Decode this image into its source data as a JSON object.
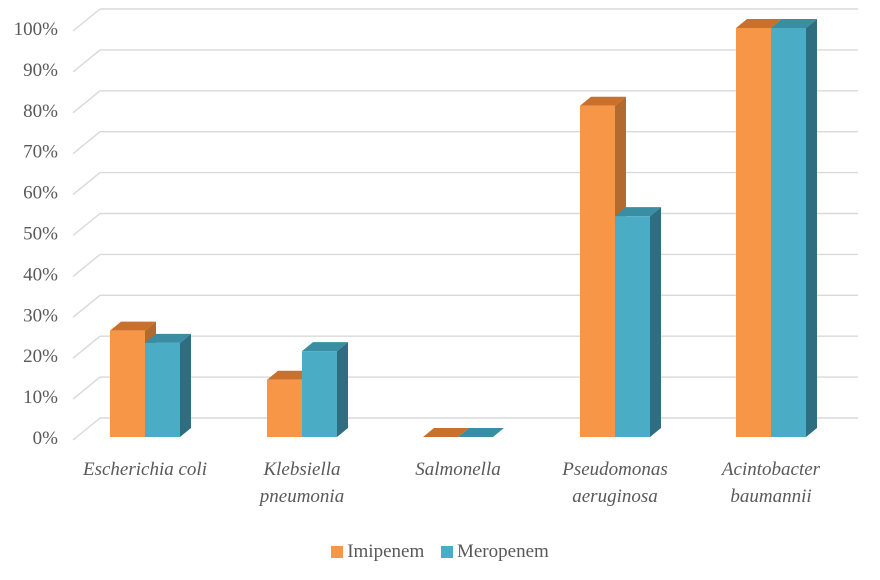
{
  "chart_data": {
    "type": "bar",
    "categories": [
      [
        "Escherichia coli"
      ],
      [
        "Klebsiella",
        "pneumonia"
      ],
      [
        "Salmonella"
      ],
      [
        "Pseudomonas",
        "aeruginosa"
      ],
      [
        "Acintobacter",
        "baumannii"
      ]
    ],
    "series": [
      {
        "name": "Imipenem",
        "values": [
          26,
          14,
          0,
          81,
          100
        ],
        "color": "#F79646",
        "side_color": "#B26A2E",
        "top_color": "#C8702C"
      },
      {
        "name": "Meropenem",
        "values": [
          23,
          21,
          0,
          54,
          100
        ],
        "color": "#4BACC6",
        "side_color": "#2E6E80",
        "top_color": "#3A8EA4"
      }
    ],
    "y_ticks": [
      "0%",
      "10%",
      "20%",
      "30%",
      "40%",
      "50%",
      "60%",
      "70%",
      "80%",
      "90%",
      "100%"
    ],
    "ylim": [
      0,
      100
    ],
    "grid": true,
    "legend_position": "bottom",
    "title": "",
    "xlabel": "",
    "ylabel": ""
  }
}
